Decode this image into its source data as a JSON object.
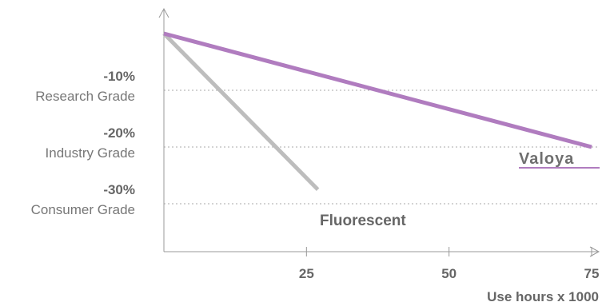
{
  "chart_data": {
    "type": "line",
    "xlabel": "Use hours x 1000",
    "x_ticks": [
      25,
      50,
      75
    ],
    "xlim": [
      0,
      75
    ],
    "ylim": [
      -37,
      3
    ],
    "grid": "dotted horizontal",
    "y_ticks": [
      {
        "value": -10,
        "label": "-10%",
        "grade": "Research Grade"
      },
      {
        "value": -20,
        "label": "-20%",
        "grade": "Industry Grade"
      },
      {
        "value": -30,
        "label": "-30%",
        "grade": "Consumer  Grade"
      }
    ],
    "series": [
      {
        "name": "Fluorescent",
        "color": "#bdbdbd",
        "x": [
          0,
          27
        ],
        "y": [
          0,
          -27.5
        ]
      },
      {
        "name": "Valoya",
        "color": "#b07cbf",
        "x": [
          0,
          75
        ],
        "y": [
          0,
          -20
        ]
      }
    ]
  }
}
